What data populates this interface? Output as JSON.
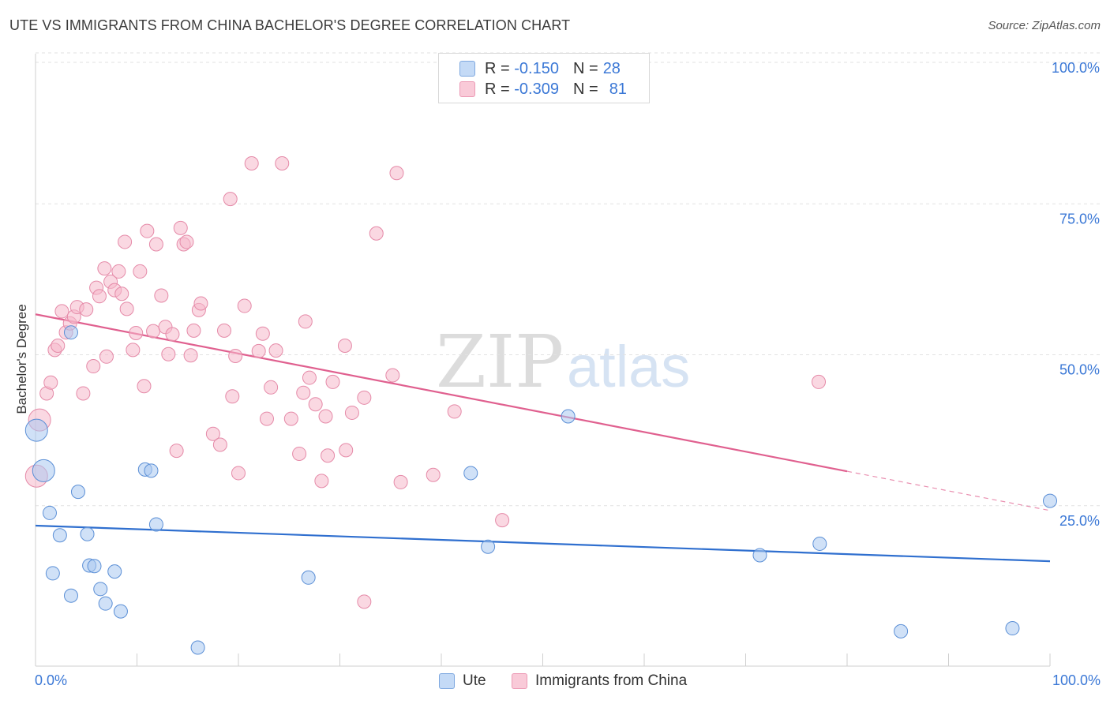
{
  "header": {
    "title": "UTE VS IMMIGRANTS FROM CHINA BACHELOR'S DEGREE CORRELATION CHART",
    "source": "Source: ZipAtlas.com"
  },
  "watermark": {
    "zip": "ZIP",
    "atlas": "atlas"
  },
  "legend_top": {
    "rows": [
      {
        "r_label": "R =",
        "r_value": "-0.150",
        "n_label": "N =",
        "n_value": "28",
        "color": "#a9c8f0"
      },
      {
        "r_label": "R =",
        "r_value": "-0.309",
        "n_label": "N =",
        "n_value": "81",
        "color": "#f6b8cb"
      }
    ]
  },
  "legend_bottom": {
    "items": [
      {
        "label": "Ute",
        "color": "#a9c8f0"
      },
      {
        "label": "Immigrants from China",
        "color": "#f6b8cb"
      }
    ]
  },
  "chart_data": {
    "type": "scatter",
    "title": "UTE VS IMMIGRANTS FROM CHINA BACHELOR'S DEGREE CORRELATION CHART",
    "xlabel": "",
    "ylabel": "Bachelor's Degree",
    "xlim": [
      0,
      100
    ],
    "ylim": [
      0,
      100
    ],
    "x_tick_labels": [
      "0.0%",
      "100.0%"
    ],
    "y_tick_labels": [
      {
        "value": 25,
        "label": "25.0%"
      },
      {
        "value": 50,
        "label": "50.0%"
      },
      {
        "value": 75,
        "label": "75.0%"
      },
      {
        "value": 100,
        "label": "100.0%"
      }
    ],
    "grid": true,
    "series": [
      {
        "name": "Ute",
        "color": "#a9c8f0",
        "stroke": "#5b8fd6",
        "points": [
          [
            0.1,
            37.5
          ],
          [
            0.8,
            30.8
          ],
          [
            1.4,
            23.8
          ],
          [
            1.7,
            13.8
          ],
          [
            2.4,
            20.1
          ],
          [
            3.5,
            53.7
          ],
          [
            3.5,
            10.1
          ],
          [
            4.2,
            27.3
          ],
          [
            5.1,
            20.3
          ],
          [
            5.3,
            15.1
          ],
          [
            5.8,
            15.0
          ],
          [
            6.4,
            11.2
          ],
          [
            6.9,
            8.8
          ],
          [
            7.8,
            14.1
          ],
          [
            8.4,
            7.5
          ],
          [
            10.8,
            31.0
          ],
          [
            11.4,
            30.8
          ],
          [
            11.9,
            21.9
          ],
          [
            16.0,
            1.5
          ],
          [
            26.9,
            13.1
          ],
          [
            42.9,
            30.4
          ],
          [
            44.6,
            18.2
          ],
          [
            52.5,
            39.8
          ],
          [
            71.4,
            16.8
          ],
          [
            77.3,
            18.7
          ],
          [
            85.3,
            4.2
          ],
          [
            96.3,
            4.7
          ],
          [
            100.0,
            25.8
          ]
        ],
        "trend": {
          "x": [
            0,
            100
          ],
          "y": [
            21.7,
            15.8
          ]
        }
      },
      {
        "name": "Immigrants from China",
        "color": "#f6b8cb",
        "stroke": "#e58aa8",
        "points": [
          [
            0.1,
            29.9
          ],
          [
            0.4,
            39.2
          ],
          [
            1.1,
            43.6
          ],
          [
            1.5,
            45.4
          ],
          [
            1.9,
            50.8
          ],
          [
            2.2,
            51.5
          ],
          [
            2.6,
            57.2
          ],
          [
            3.0,
            53.7
          ],
          [
            3.4,
            55.2
          ],
          [
            3.8,
            56.3
          ],
          [
            4.1,
            57.9
          ],
          [
            4.7,
            43.6
          ],
          [
            5.0,
            57.5
          ],
          [
            5.7,
            48.1
          ],
          [
            6.0,
            61.1
          ],
          [
            6.3,
            59.7
          ],
          [
            6.8,
            64.3
          ],
          [
            7.0,
            49.7
          ],
          [
            7.4,
            62.1
          ],
          [
            7.8,
            60.7
          ],
          [
            8.2,
            63.8
          ],
          [
            8.5,
            60.1
          ],
          [
            8.8,
            68.7
          ],
          [
            9.0,
            57.6
          ],
          [
            9.6,
            50.8
          ],
          [
            9.9,
            53.6
          ],
          [
            10.3,
            63.8
          ],
          [
            10.7,
            44.8
          ],
          [
            11.0,
            70.5
          ],
          [
            11.6,
            53.9
          ],
          [
            11.9,
            68.3
          ],
          [
            12.4,
            59.8
          ],
          [
            12.8,
            54.6
          ],
          [
            13.1,
            50.1
          ],
          [
            13.5,
            53.4
          ],
          [
            13.9,
            34.1
          ],
          [
            14.3,
            71.0
          ],
          [
            14.6,
            68.3
          ],
          [
            14.9,
            68.7
          ],
          [
            15.3,
            49.9
          ],
          [
            15.6,
            54.0
          ],
          [
            16.1,
            57.4
          ],
          [
            16.3,
            58.5
          ],
          [
            17.5,
            36.9
          ],
          [
            18.2,
            35.1
          ],
          [
            18.6,
            54.0
          ],
          [
            19.2,
            75.8
          ],
          [
            19.4,
            43.1
          ],
          [
            19.7,
            49.8
          ],
          [
            20.0,
            30.4
          ],
          [
            20.6,
            58.1
          ],
          [
            21.3,
            81.7
          ],
          [
            22.0,
            50.6
          ],
          [
            22.4,
            53.5
          ],
          [
            22.8,
            39.4
          ],
          [
            23.2,
            44.6
          ],
          [
            23.7,
            50.7
          ],
          [
            24.3,
            81.7
          ],
          [
            25.2,
            39.4
          ],
          [
            26.0,
            33.6
          ],
          [
            26.4,
            43.7
          ],
          [
            26.6,
            55.5
          ],
          [
            27.0,
            46.2
          ],
          [
            27.6,
            41.8
          ],
          [
            28.2,
            29.1
          ],
          [
            28.6,
            39.8
          ],
          [
            28.8,
            33.3
          ],
          [
            29.3,
            45.5
          ],
          [
            30.5,
            51.5
          ],
          [
            30.6,
            34.2
          ],
          [
            31.2,
            40.4
          ],
          [
            32.4,
            9.1
          ],
          [
            32.4,
            42.9
          ],
          [
            33.6,
            70.1
          ],
          [
            35.2,
            46.6
          ],
          [
            35.6,
            80.1
          ],
          [
            36.0,
            28.9
          ],
          [
            39.2,
            30.1
          ],
          [
            41.3,
            40.6
          ],
          [
            46.0,
            22.6
          ],
          [
            77.2,
            45.5
          ]
        ],
        "trend": {
          "x": [
            0,
            80
          ],
          "y": [
            56.7,
            30.7
          ]
        },
        "trend_dashed": {
          "x": [
            80,
            100
          ],
          "y": [
            30.7,
            24.2
          ]
        }
      }
    ]
  }
}
